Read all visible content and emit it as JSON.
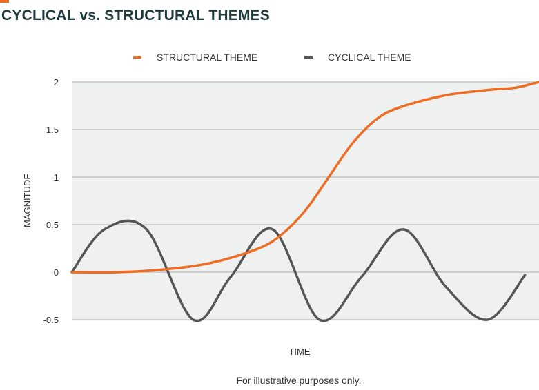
{
  "title": "CYCLICAL vs. STRUCTURAL THEMES",
  "footnote": "For illustrative purposes only.",
  "chart_data": {
    "type": "line",
    "title": "CYCLICAL vs. STRUCTURAL THEMES",
    "xlabel": "TIME",
    "ylabel": "MAGNITUDE",
    "ylim": [
      -0.5,
      2
    ],
    "yticks": [
      "2",
      "1.5",
      "1",
      "0.5",
      "0",
      "-0.5"
    ],
    "ytick_values": [
      2,
      1.5,
      1,
      0.5,
      0,
      -0.5
    ],
    "grid": true,
    "legend_position": "top",
    "series": [
      {
        "name": "STRUCTURAL THEME",
        "color": "#ee6c23",
        "x": [
          0,
          0.1,
          0.2,
          0.3,
          0.4,
          0.45,
          0.5,
          0.55,
          0.6,
          0.65,
          0.7,
          0.8,
          0.9,
          0.95,
          1.0
        ],
        "values": [
          0.0,
          0.0,
          0.03,
          0.1,
          0.25,
          0.4,
          0.65,
          1.0,
          1.35,
          1.6,
          1.73,
          1.86,
          1.92,
          1.94,
          2.0
        ]
      },
      {
        "name": "CYCLICAL THEME",
        "color": "#555555",
        "x": [
          0,
          0.07,
          0.16,
          0.26,
          0.34,
          0.43,
          0.53,
          0.62,
          0.71,
          0.8,
          0.89,
          0.97
        ],
        "values": [
          0.0,
          0.45,
          0.45,
          -0.5,
          -0.05,
          0.45,
          -0.5,
          -0.05,
          0.45,
          -0.15,
          -0.5,
          -0.03
        ]
      }
    ]
  }
}
